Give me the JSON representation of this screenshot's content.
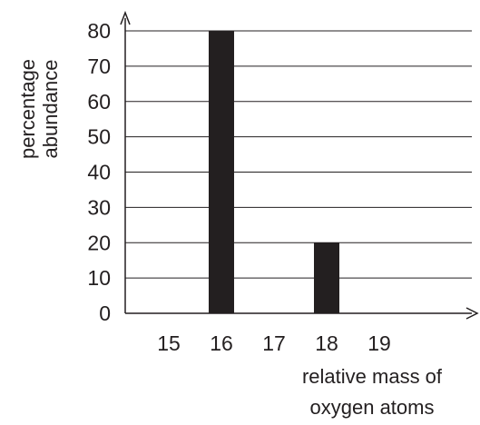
{
  "chart_data": {
    "type": "bar",
    "xlabel": [
      "relative mass of",
      "oxygen atoms"
    ],
    "ylabel": [
      "percentage",
      "abundance"
    ],
    "categories": [
      "15",
      "16",
      "17",
      "18",
      "19"
    ],
    "values": [
      0,
      80,
      0,
      20,
      0
    ],
    "ylim": [
      0,
      80
    ],
    "yticks": [
      "0",
      "10",
      "20",
      "30",
      "40",
      "50",
      "60",
      "70",
      "80"
    ],
    "grid": "horizontal",
    "legend": "none",
    "colors": {
      "bar": "#231f20",
      "grid": "#231f20",
      "text": "#231f20"
    }
  }
}
